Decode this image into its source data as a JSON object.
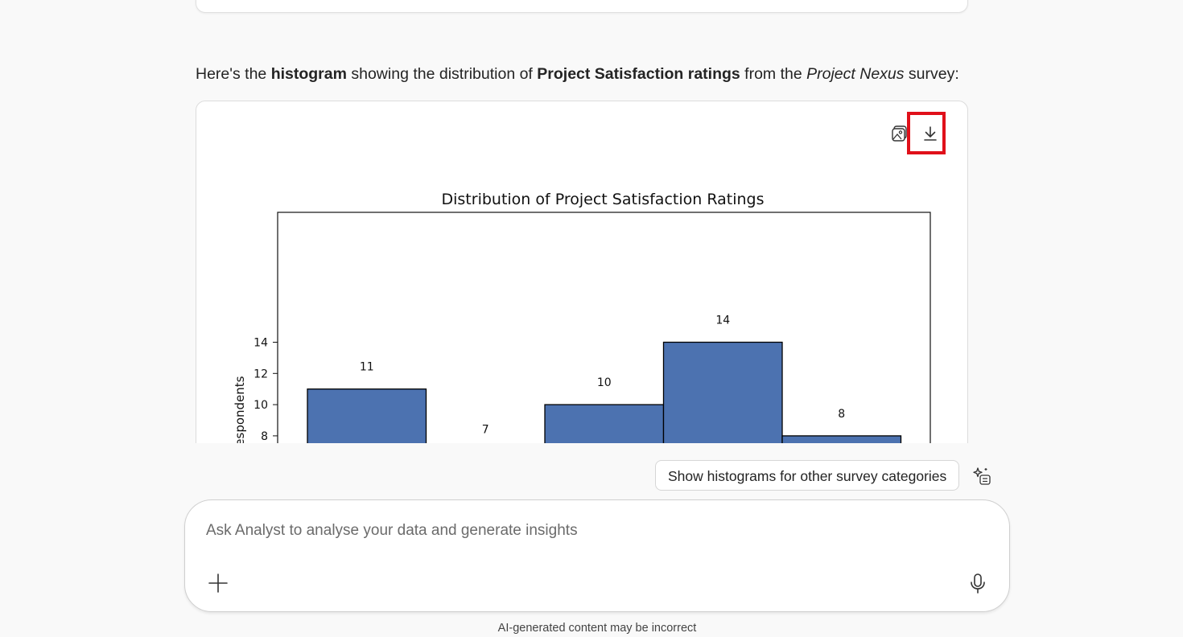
{
  "message": {
    "intro_prefix": "Here's the ",
    "intro_bold_1": "histogram",
    "intro_mid": " showing the distribution of ",
    "intro_bold_2": "Project Satisfaction ratings",
    "intro_from": " from the ",
    "intro_italic": "Project Nexus",
    "intro_suffix": " survey:"
  },
  "chart_toolbar": {
    "image_icon": "image-icon",
    "download_icon": "download-icon"
  },
  "chart_data": {
    "type": "bar",
    "title": "Distribution of Project Satisfaction Ratings",
    "ylabel": "Respondents",
    "xlabel": "",
    "values": [
      11,
      7,
      10,
      14,
      8
    ],
    "data_labels": [
      "11",
      "7",
      "10",
      "14",
      "8"
    ],
    "yticks": [
      "8",
      "10",
      "12",
      "14"
    ],
    "ylim": [
      0,
      14.7
    ],
    "bar_color": "#4c72b0",
    "grid": false
  },
  "suggestion": {
    "label": "Show histograms for other survey categories"
  },
  "composer": {
    "placeholder": "Ask Analyst to analyse your data and generate insights"
  },
  "footer": {
    "disclaimer": "AI-generated content may be incorrect"
  },
  "colors": {
    "highlight": "#e0101a",
    "background": "#f9f9f9"
  }
}
